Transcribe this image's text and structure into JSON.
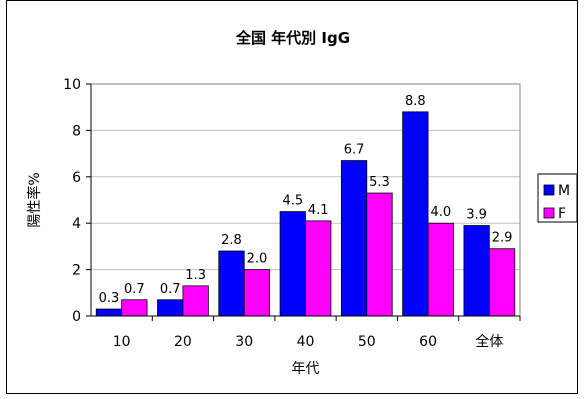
{
  "chart_data": {
    "type": "bar",
    "title": "全国 年代別 IgG",
    "xlabel": "年代",
    "ylabel": "陽性率%",
    "categories": [
      "10",
      "20",
      "30",
      "40",
      "50",
      "60",
      "全体"
    ],
    "ylim": [
      0,
      10
    ],
    "yticks": [
      0,
      2,
      4,
      6,
      8,
      10
    ],
    "grid": true,
    "legend_position": "right",
    "series": [
      {
        "name": "M",
        "color": "#0000ff",
        "values": [
          0.3,
          0.7,
          2.8,
          4.5,
          6.7,
          8.8,
          3.9
        ],
        "labels": [
          "0.3",
          "0.7",
          "2.8",
          "4.5",
          "6.7",
          "8.8",
          "3.9"
        ]
      },
      {
        "name": "F",
        "color": "#ff00ff",
        "values": [
          0.7,
          1.3,
          2.0,
          4.1,
          5.3,
          4.0,
          2.9
        ],
        "labels": [
          "0.7",
          "1.3",
          "2.0",
          "4.1",
          "5.3",
          "4.0",
          "2.9"
        ]
      }
    ]
  }
}
